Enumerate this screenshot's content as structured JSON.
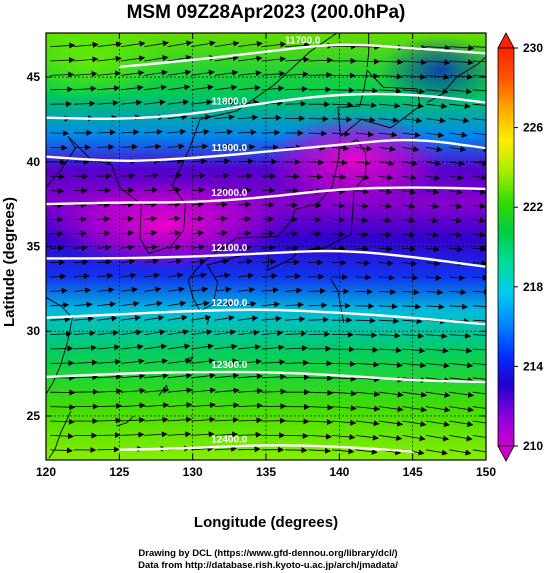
{
  "chart_data": {
    "type": "heatmap",
    "title": "MSM 09Z28Apr2023 (200.0hPa)",
    "xlabel": "Longitude (degrees)",
    "ylabel": "Latitude  (degrees)",
    "xlim": [
      120,
      150
    ],
    "ylim": [
      22.4,
      47.6
    ],
    "x_ticks": [
      120,
      125,
      130,
      135,
      140,
      145,
      150
    ],
    "y_ticks": [
      25,
      30,
      35,
      40,
      45
    ],
    "grid": true,
    "colorbar": {
      "location": "right",
      "min": 210,
      "max": 230,
      "tick_values": [
        210,
        214,
        218,
        222,
        226,
        230
      ],
      "extend": "both",
      "colors": [
        "#cc00cc",
        "#8800dd",
        "#2200cc",
        "#0033ff",
        "#0088ff",
        "#00ccee",
        "#00dd99",
        "#00cc44",
        "#33dd00",
        "#aaee00",
        "#ffee00",
        "#ffaa00",
        "#ff5500",
        "#ff2200"
      ]
    },
    "contours": [
      {
        "label": "11700.0",
        "points": [
          [
            125,
            45.6
          ],
          [
            130,
            46.0
          ],
          [
            135,
            46.5
          ],
          [
            140,
            47.0
          ],
          [
            145,
            46.7
          ],
          [
            150,
            46.4
          ]
        ]
      },
      {
        "label": "11800.0",
        "points": [
          [
            120,
            42.6
          ],
          [
            125,
            42.5
          ],
          [
            130,
            42.8
          ],
          [
            135,
            43.5
          ],
          [
            140,
            44.0
          ],
          [
            145,
            44.0
          ],
          [
            150,
            43.5
          ]
        ]
      },
      {
        "label": "11900.0",
        "points": [
          [
            120,
            40.3
          ],
          [
            125,
            40.0
          ],
          [
            130,
            40.2
          ],
          [
            135,
            40.6
          ],
          [
            140,
            41.0
          ],
          [
            145,
            41.4
          ],
          [
            150,
            40.8
          ]
        ]
      },
      {
        "label": "12000.0",
        "points": [
          [
            120,
            37.5
          ],
          [
            125,
            37.6
          ],
          [
            130,
            37.6
          ],
          [
            135,
            37.9
          ],
          [
            140,
            38.4
          ],
          [
            145,
            38.5
          ],
          [
            150,
            38.4
          ]
        ]
      },
      {
        "label": "12100.0",
        "points": [
          [
            120,
            34.3
          ],
          [
            125,
            34.3
          ],
          [
            130,
            34.4
          ],
          [
            135,
            34.6
          ],
          [
            140,
            34.8
          ],
          [
            145,
            34.4
          ],
          [
            150,
            33.8
          ]
        ]
      },
      {
        "label": "12200.0",
        "points": [
          [
            120,
            30.8
          ],
          [
            125,
            31.0
          ],
          [
            130,
            31.2
          ],
          [
            135,
            31.3
          ],
          [
            140,
            31.1
          ],
          [
            145,
            30.8
          ],
          [
            150,
            30.4
          ]
        ]
      },
      {
        "label": "12300.0",
        "points": [
          [
            120,
            27.3
          ],
          [
            125,
            27.5
          ],
          [
            130,
            27.6
          ],
          [
            135,
            27.6
          ],
          [
            140,
            27.4
          ],
          [
            145,
            27.1
          ],
          [
            150,
            27.0
          ]
        ]
      },
      {
        "label": "12400.0",
        "points": [
          [
            125,
            23.0
          ],
          [
            130,
            23.1
          ],
          [
            135,
            23.3
          ],
          [
            140,
            23.2
          ],
          [
            145,
            22.9
          ]
        ]
      }
    ],
    "wind": "westerly to west-southwesterly vectors across the whole domain"
  },
  "footer": {
    "line1": "Drawing by DCL (https://www.gfd-dennou.org/library/dcl/)",
    "line2": "Data from http://database.rish.kyoto-u.ac.jp/arch/jmadata/"
  }
}
